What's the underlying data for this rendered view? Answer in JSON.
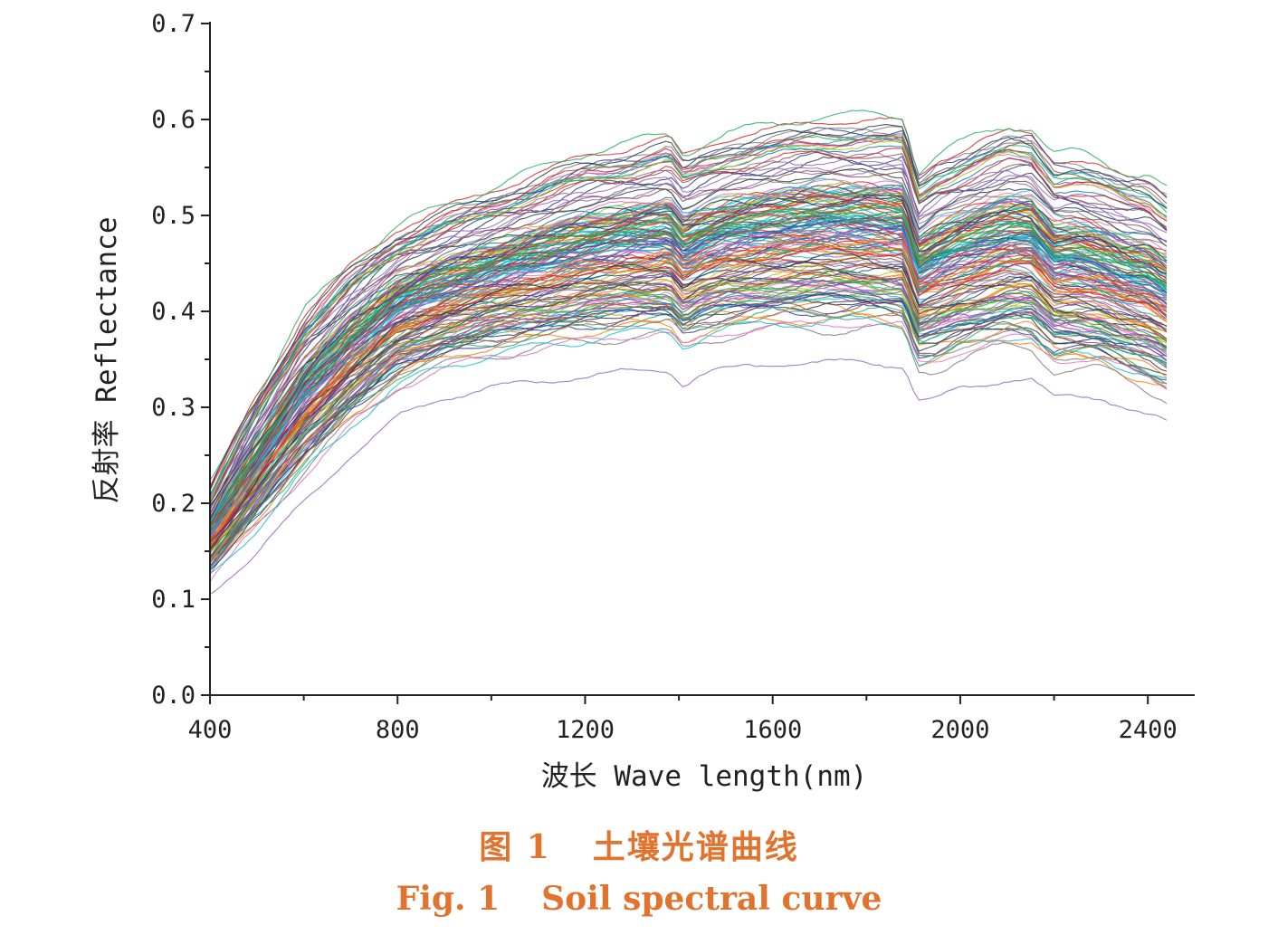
{
  "chart_data": {
    "type": "line",
    "xlabel": "波长 Wave length(nm)",
    "ylabel": "反射率 Reflectance",
    "xlim": [
      400,
      2500
    ],
    "ylim": [
      0.0,
      0.7
    ],
    "x_ticks": [
      400,
      800,
      1200,
      1600,
      2000,
      2400
    ],
    "x_tick_labels": [
      "400",
      "800",
      "1200",
      "1600",
      "2000",
      "2400"
    ],
    "y_ticks": [
      0.0,
      0.1,
      0.2,
      0.3,
      0.4,
      0.5,
      0.6,
      0.7
    ],
    "y_tick_labels": [
      "0.0",
      "0.1",
      "0.2",
      "0.3",
      "0.4",
      "0.5",
      "0.6",
      "0.7"
    ],
    "x": [
      400,
      500,
      600,
      700,
      800,
      900,
      1000,
      1100,
      1200,
      1300,
      1380,
      1410,
      1450,
      1500,
      1600,
      1700,
      1800,
      1880,
      1910,
      1950,
      2000,
      2100,
      2150,
      2200,
      2250,
      2300,
      2350,
      2400,
      2450
    ],
    "envelope": {
      "upper": [
        0.23,
        0.33,
        0.42,
        0.47,
        0.51,
        0.53,
        0.55,
        0.57,
        0.59,
        0.6,
        0.61,
        0.59,
        0.6,
        0.61,
        0.62,
        0.63,
        0.63,
        0.63,
        0.57,
        0.59,
        0.6,
        0.62,
        0.62,
        0.59,
        0.59,
        0.58,
        0.57,
        0.57,
        0.55
      ],
      "lower": [
        0.105,
        0.15,
        0.2,
        0.25,
        0.29,
        0.31,
        0.32,
        0.325,
        0.33,
        0.335,
        0.335,
        0.32,
        0.33,
        0.335,
        0.34,
        0.34,
        0.34,
        0.335,
        0.3,
        0.3,
        0.31,
        0.32,
        0.32,
        0.3,
        0.3,
        0.3,
        0.29,
        0.28,
        0.27
      ]
    },
    "series_count": 160
  },
  "caption": {
    "cn_fig": "图 1",
    "cn_title": "土壤光谱曲线",
    "en_fig": "Fig. 1",
    "en_title": "Soil spectral curve"
  },
  "colors": {
    "caption": "#e2732e",
    "axis": "#222222",
    "palette": [
      "#1f77b4",
      "#d62728",
      "#2ca02c",
      "#9467bd",
      "#8c564b",
      "#e377c2",
      "#17becf",
      "#bcbd22",
      "#ff7f0e",
      "#7f7f7f",
      "#3b3b98",
      "#20b2aa",
      "#c0392b",
      "#27ae60",
      "#8e44ad",
      "#2c3e50"
    ]
  }
}
